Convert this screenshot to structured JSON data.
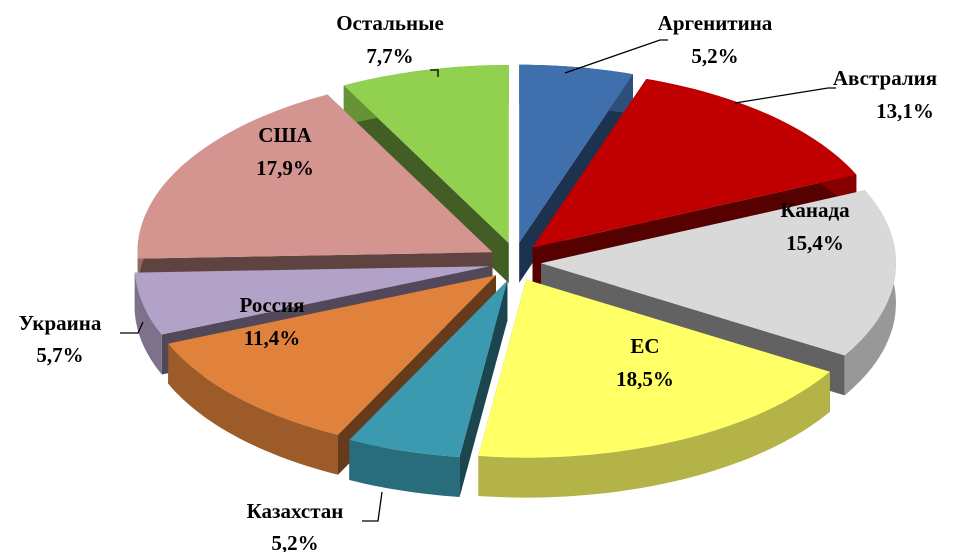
{
  "chart_data": {
    "type": "pie",
    "categories": [
      "Аргенитина",
      "Австралия",
      "Канада",
      "ЕС",
      "Казахстан",
      "Россия",
      "Украина",
      "США",
      "Остальные"
    ],
    "values": [
      5.2,
      13.1,
      15.4,
      18.5,
      5.2,
      11.4,
      5.7,
      17.9,
      7.7
    ],
    "value_labels": [
      "5,2%",
      "13,1%",
      "15,4%",
      "18,5%",
      "5,2%",
      "11,4%",
      "5,7%",
      "17,9%",
      "7,7%"
    ],
    "colors": [
      "#3f6fad",
      "#c00000",
      "#d9d9d9",
      "#ffff66",
      "#3b9ab0",
      "#e0823c",
      "#b3a2c7",
      "#d49591",
      "#92d050"
    ]
  }
}
